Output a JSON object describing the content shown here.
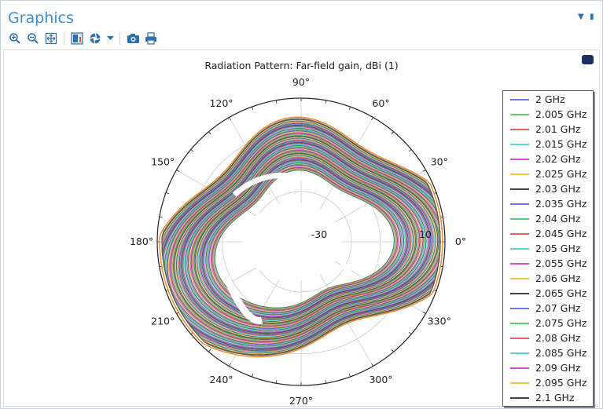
{
  "window": {
    "title": "Graphics"
  },
  "toolbar": {
    "icons": [
      "zoom-in-icon",
      "zoom-out-icon",
      "zoom-extents-icon",
      "scene-light-icon",
      "render-icon",
      "dropdown-icon",
      "camera-icon",
      "print-icon"
    ]
  },
  "chart_data": {
    "type": "polar-line",
    "title": "Radiation Pattern: Far-field gain, dBi (1)",
    "angle_ticks": [
      "0°",
      "30°",
      "60°",
      "90°",
      "120°",
      "150°",
      "180°",
      "210°",
      "240°",
      "270°",
      "300°",
      "330°"
    ],
    "radial_ticks": [
      "-30",
      "10"
    ],
    "radial_range": [
      -30,
      10
    ],
    "legend_position": "right",
    "grid": true,
    "series": [
      {
        "name": "2 GHz",
        "color": "#6f74e8"
      },
      {
        "name": "2.005 GHz",
        "color": "#5ad16b"
      },
      {
        "name": "2.01 GHz",
        "color": "#e46161"
      },
      {
        "name": "2.015 GHz",
        "color": "#58d6d6"
      },
      {
        "name": "2.02 GHz",
        "color": "#cf4fd1"
      },
      {
        "name": "2.025 GHz",
        "color": "#f0c64a"
      },
      {
        "name": "2.03 GHz",
        "color": "#444444"
      },
      {
        "name": "2.035 GHz",
        "color": "#6f74e8"
      },
      {
        "name": "2.04 GHz",
        "color": "#5ad16b"
      },
      {
        "name": "2.045 GHz",
        "color": "#e46161"
      },
      {
        "name": "2.05 GHz",
        "color": "#58d6d6"
      },
      {
        "name": "2.055 GHz",
        "color": "#cf4fd1"
      },
      {
        "name": "2.06 GHz",
        "color": "#f0c64a"
      },
      {
        "name": "2.065 GHz",
        "color": "#444444"
      },
      {
        "name": "2.07 GHz",
        "color": "#6f74e8"
      },
      {
        "name": "2.075 GHz",
        "color": "#5ad16b"
      },
      {
        "name": "2.08 GHz",
        "color": "#e46161"
      },
      {
        "name": "2.085 GHz",
        "color": "#58d6d6"
      },
      {
        "name": "2.09 GHz",
        "color": "#cf4fd1"
      },
      {
        "name": "2.095 GHz",
        "color": "#f0c64a"
      },
      {
        "name": "2.1 GHz",
        "color": "#444444"
      }
    ],
    "outer_curve_color": "#f08a2c"
  }
}
